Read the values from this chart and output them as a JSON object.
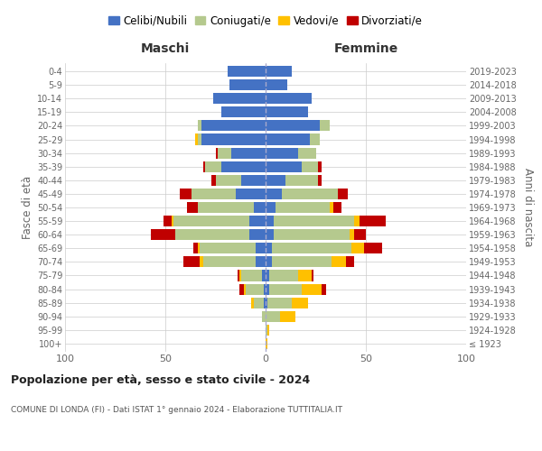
{
  "age_groups": [
    "100+",
    "95-99",
    "90-94",
    "85-89",
    "80-84",
    "75-79",
    "70-74",
    "65-69",
    "60-64",
    "55-59",
    "50-54",
    "45-49",
    "40-44",
    "35-39",
    "30-34",
    "25-29",
    "20-24",
    "15-19",
    "10-14",
    "5-9",
    "0-4"
  ],
  "birth_years": [
    "≤ 1923",
    "1924-1928",
    "1929-1933",
    "1934-1938",
    "1939-1943",
    "1944-1948",
    "1949-1953",
    "1954-1958",
    "1959-1963",
    "1964-1968",
    "1969-1973",
    "1974-1978",
    "1979-1983",
    "1984-1988",
    "1989-1993",
    "1994-1998",
    "1999-2003",
    "2004-2008",
    "2009-2013",
    "2014-2018",
    "2019-2023"
  ],
  "colors": {
    "celibi": "#4472c4",
    "coniugati": "#b5c98e",
    "vedovi": "#ffc000",
    "divorziati": "#c00000"
  },
  "males": {
    "celibi": [
      0,
      0,
      0,
      1,
      1,
      2,
      5,
      5,
      8,
      8,
      6,
      15,
      12,
      22,
      17,
      32,
      32,
      22,
      26,
      18,
      19
    ],
    "coniugati": [
      0,
      0,
      2,
      5,
      9,
      10,
      26,
      28,
      37,
      38,
      28,
      22,
      13,
      8,
      7,
      2,
      2,
      0,
      0,
      0,
      0
    ],
    "vedovi": [
      0,
      0,
      0,
      1,
      1,
      1,
      2,
      1,
      0,
      1,
      0,
      0,
      0,
      0,
      0,
      1,
      0,
      0,
      0,
      0,
      0
    ],
    "divorziati": [
      0,
      0,
      0,
      0,
      2,
      1,
      8,
      2,
      12,
      4,
      5,
      6,
      2,
      1,
      1,
      0,
      0,
      0,
      0,
      0,
      0
    ]
  },
  "females": {
    "celibi": [
      0,
      0,
      0,
      1,
      2,
      2,
      3,
      3,
      4,
      4,
      5,
      8,
      10,
      18,
      16,
      22,
      27,
      21,
      23,
      11,
      13
    ],
    "coniugati": [
      0,
      1,
      7,
      12,
      16,
      14,
      30,
      40,
      38,
      40,
      27,
      28,
      16,
      8,
      9,
      5,
      5,
      0,
      0,
      0,
      0
    ],
    "vedovi": [
      1,
      1,
      8,
      8,
      10,
      7,
      7,
      6,
      2,
      3,
      2,
      0,
      0,
      0,
      0,
      0,
      0,
      0,
      0,
      0,
      0
    ],
    "divorziati": [
      0,
      0,
      0,
      0,
      2,
      1,
      4,
      9,
      6,
      13,
      4,
      5,
      2,
      2,
      0,
      0,
      0,
      0,
      0,
      0,
      0
    ]
  },
  "xlim": 100,
  "xtick_vals": [
    -100,
    -50,
    0,
    50,
    100
  ],
  "title": "Popolazione per età, sesso e stato civile - 2024",
  "subtitle": "COMUNE DI LONDA (FI) - Dati ISTAT 1° gennaio 2024 - Elaborazione TUTTITALIA.IT",
  "ylabel_left": "Fasce di età",
  "ylabel_right": "Anni di nascita",
  "xlabel_left": "Maschi",
  "xlabel_right": "Femmine",
  "legend_labels": [
    "Celibi/Nubili",
    "Coniugati/e",
    "Vedovi/e",
    "Divorziati/e"
  ],
  "legend_color_keys": [
    "celibi",
    "coniugati",
    "vedovi",
    "divorziati"
  ],
  "bg_color": "#ffffff",
  "grid_color": "#cccccc",
  "bar_height": 0.8
}
